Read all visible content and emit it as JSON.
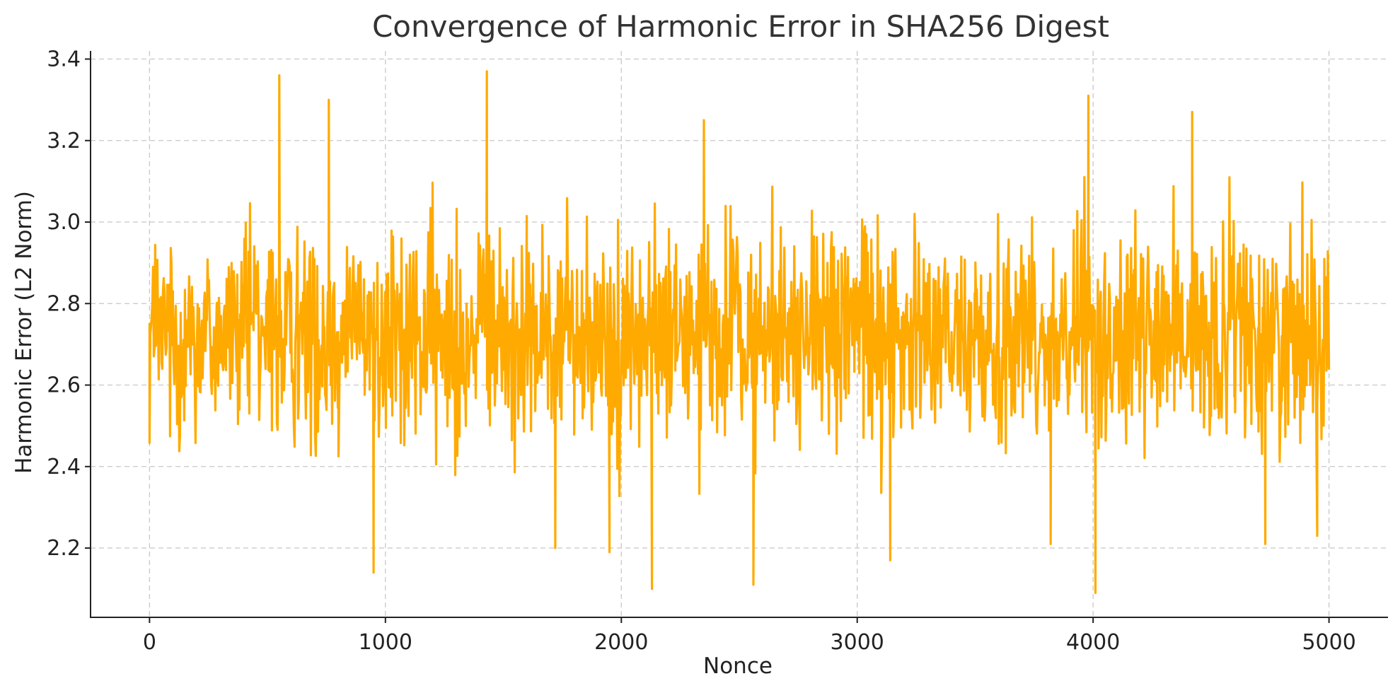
{
  "chart_data": {
    "type": "line",
    "title": "Convergence of Harmonic Error in SHA256 Digest",
    "xlabel": "Nonce",
    "ylabel": "Harmonic Error (L2 Norm)",
    "xlim": [
      -250,
      5250
    ],
    "ylim": [
      2.03,
      3.42
    ],
    "xticks": [
      0,
      1000,
      2000,
      3000,
      4000,
      5000
    ],
    "yticks": [
      2.2,
      2.4,
      2.6,
      2.8,
      3.0,
      3.2,
      3.4
    ],
    "xtick_labels": [
      "0",
      "1000",
      "2000",
      "3000",
      "4000",
      "5000"
    ],
    "ytick_labels": [
      "2.2",
      "2.4",
      "2.6",
      "2.8",
      "3.0",
      "3.2",
      "3.4"
    ],
    "grid": true,
    "legend": "none",
    "color": "#FFAA00",
    "series": [
      {
        "name": "",
        "x": [
          0,
          100,
          200,
          300,
          400,
          500,
          550,
          600,
          700,
          760,
          800,
          900,
          950,
          1000,
          1100,
          1200,
          1300,
          1400,
          1430,
          1500,
          1600,
          1700,
          1720,
          1800,
          1900,
          1950,
          2000,
          2100,
          2130,
          2200,
          2300,
          2350,
          2400,
          2500,
          2560,
          2600,
          2700,
          2800,
          2900,
          3000,
          3100,
          3140,
          3200,
          3300,
          3400,
          3500,
          3600,
          3700,
          3800,
          3820,
          3900,
          3980,
          4000,
          4010,
          4100,
          4200,
          4300,
          4400,
          4420,
          4500,
          4600,
          4700,
          4730,
          4800,
          4900,
          4950,
          5000
        ],
        "y": [
          2.75,
          2.72,
          2.7,
          2.73,
          2.71,
          2.74,
          3.36,
          2.72,
          2.7,
          3.3,
          2.73,
          2.71,
          2.14,
          2.72,
          2.74,
          2.7,
          2.73,
          2.75,
          3.37,
          2.71,
          2.73,
          2.72,
          2.2,
          2.7,
          2.74,
          2.19,
          2.71,
          2.73,
          2.1,
          2.72,
          2.7,
          3.25,
          2.73,
          2.71,
          2.11,
          2.72,
          2.74,
          2.7,
          2.73,
          2.71,
          2.72,
          2.17,
          2.74,
          2.7,
          2.73,
          2.71,
          2.75,
          2.72,
          2.7,
          2.21,
          2.73,
          3.31,
          2.72,
          2.09,
          2.71,
          2.74,
          2.7,
          2.72,
          3.27,
          2.73,
          2.71,
          2.74,
          2.21,
          2.72,
          2.73,
          2.23,
          2.64
        ]
      }
    ]
  }
}
